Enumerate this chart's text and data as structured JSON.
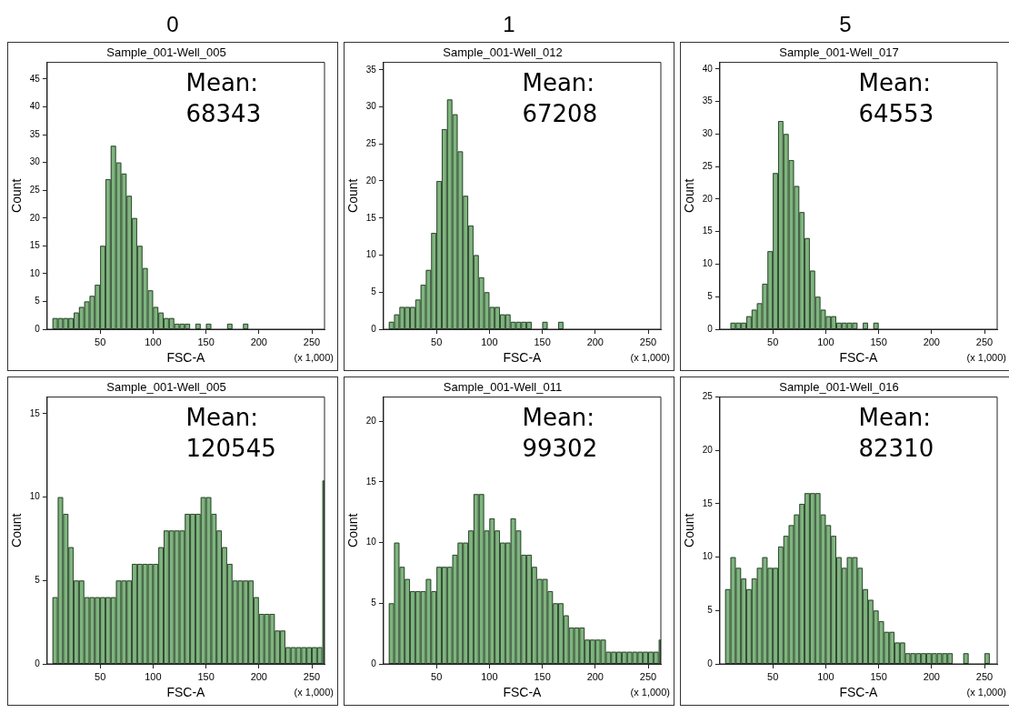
{
  "chart_data": [
    {
      "type": "histogram",
      "title": "0",
      "subtitle": "Sample_001-Well_005",
      "xlabel": "FSC-A",
      "ylabel": "Count",
      "annotations": [
        "Mean:",
        "68343",
        "(x 1,000)"
      ],
      "color": "#7fb47f",
      "grid": false,
      "xlim": [
        0,
        262
      ],
      "xticks": [
        50,
        100,
        150,
        200,
        250
      ],
      "ylim": [
        0,
        48
      ],
      "yticks": [
        0,
        5,
        10,
        15,
        20,
        25,
        30,
        35,
        40,
        45
      ],
      "bins": [
        5,
        10,
        15,
        20,
        25,
        30,
        35,
        40,
        45,
        50,
        55,
        60,
        65,
        70,
        75,
        80,
        85,
        90,
        95,
        100,
        105,
        110,
        115,
        120,
        125,
        130,
        135,
        140,
        145,
        150,
        155,
        160,
        165,
        170,
        175,
        180,
        185,
        190,
        195,
        200,
        205,
        210,
        215,
        220,
        225,
        230,
        235,
        240,
        245,
        250,
        255,
        260
      ],
      "values": [
        2,
        2,
        2,
        2,
        3,
        4,
        5,
        6,
        8,
        15,
        27,
        33,
        30,
        28,
        24,
        20,
        15,
        11,
        7,
        4,
        3,
        2,
        2,
        1,
        1,
        1,
        0,
        1,
        0,
        1,
        0,
        0,
        0,
        1,
        0,
        0,
        1,
        0,
        0,
        0,
        0,
        0,
        0,
        0,
        0,
        0,
        0,
        0,
        0,
        0,
        0
      ]
    },
    {
      "type": "histogram",
      "title": "1",
      "subtitle": "Sample_001-Well_012",
      "xlabel": "FSC-A",
      "ylabel": "Count",
      "annotations": [
        "Mean:",
        "67208",
        "(x 1,000)"
      ],
      "color": "#7fb47f",
      "grid": false,
      "xlim": [
        0,
        262
      ],
      "xticks": [
        50,
        100,
        150,
        200,
        250
      ],
      "ylim": [
        0,
        36
      ],
      "yticks": [
        0,
        5,
        10,
        15,
        20,
        25,
        30,
        35
      ],
      "bins": [
        5,
        10,
        15,
        20,
        25,
        30,
        35,
        40,
        45,
        50,
        55,
        60,
        65,
        70,
        75,
        80,
        85,
        90,
        95,
        100,
        105,
        110,
        115,
        120,
        125,
        130,
        135,
        140,
        145,
        150,
        155,
        160,
        165,
        170,
        175,
        180,
        185,
        190,
        195,
        200,
        205,
        210,
        215,
        220,
        225,
        230,
        235,
        240,
        245,
        250,
        255,
        260
      ],
      "values": [
        1,
        2,
        3,
        3,
        3,
        4,
        6,
        8,
        13,
        20,
        27,
        31,
        29,
        24,
        18,
        14,
        10,
        7,
        5,
        3,
        3,
        2,
        2,
        1,
        1,
        1,
        1,
        0,
        0,
        1,
        0,
        0,
        1,
        0,
        0,
        0,
        0,
        0,
        0,
        0,
        0,
        0,
        0,
        0,
        0,
        0,
        0,
        0,
        0,
        0,
        0
      ]
    },
    {
      "type": "histogram",
      "title": "5",
      "subtitle": "Sample_001-Well_017",
      "xlabel": "FSC-A",
      "ylabel": "Count",
      "annotations": [
        "Mean:",
        "64553",
        "(x 1,000)"
      ],
      "color": "#7fb47f",
      "grid": false,
      "xlim": [
        0,
        262
      ],
      "xticks": [
        50,
        100,
        150,
        200,
        250
      ],
      "ylim": [
        0,
        41
      ],
      "yticks": [
        0,
        5,
        10,
        15,
        20,
        25,
        30,
        35,
        40
      ],
      "bins": [
        5,
        10,
        15,
        20,
        25,
        30,
        35,
        40,
        45,
        50,
        55,
        60,
        65,
        70,
        75,
        80,
        85,
        90,
        95,
        100,
        105,
        110,
        115,
        120,
        125,
        130,
        135,
        140,
        145,
        150,
        155,
        160,
        165,
        170,
        175,
        180,
        185,
        190,
        195,
        200,
        205,
        210,
        215,
        220,
        225,
        230,
        235,
        240,
        245,
        250,
        255,
        260
      ],
      "values": [
        0,
        1,
        1,
        1,
        2,
        3,
        4,
        7,
        12,
        24,
        32,
        30,
        26,
        22,
        18,
        14,
        9,
        5,
        3,
        2,
        2,
        1,
        1,
        1,
        1,
        0,
        1,
        0,
        1,
        0,
        0,
        0,
        0,
        0,
        0,
        0,
        0,
        0,
        0,
        0,
        0,
        0,
        0,
        0,
        0,
        0,
        0,
        0,
        0,
        0,
        0
      ]
    },
    {
      "type": "histogram",
      "subtitle": "Sample_001-Well_005",
      "xlabel": "FSC-A",
      "ylabel": "Count",
      "annotations": [
        "Mean:",
        "120545",
        "(x 1,000)"
      ],
      "color": "#7fb47f",
      "grid": false,
      "xlim": [
        0,
        262
      ],
      "xticks": [
        50,
        100,
        150,
        200,
        250
      ],
      "ylim": [
        0,
        16
      ],
      "yticks": [
        0,
        5,
        10,
        15
      ],
      "bins": [
        5,
        10,
        15,
        20,
        25,
        30,
        35,
        40,
        45,
        50,
        55,
        60,
        65,
        70,
        75,
        80,
        85,
        90,
        95,
        100,
        105,
        110,
        115,
        120,
        125,
        130,
        135,
        140,
        145,
        150,
        155,
        160,
        165,
        170,
        175,
        180,
        185,
        190,
        195,
        200,
        205,
        210,
        215,
        220,
        225,
        230,
        235,
        240,
        245,
        250,
        255,
        260,
        262
      ],
      "values": [
        4,
        10,
        9,
        7,
        5,
        5,
        4,
        4,
        4,
        4,
        4,
        4,
        5,
        5,
        5,
        6,
        6,
        6,
        6,
        6,
        7,
        8,
        8,
        8,
        8,
        9,
        9,
        9,
        10,
        10,
        9,
        8,
        7,
        6,
        5,
        5,
        5,
        5,
        4,
        3,
        3,
        3,
        2,
        2,
        1,
        1,
        1,
        1,
        1,
        1,
        1,
        11
      ]
    },
    {
      "type": "histogram",
      "subtitle": "Sample_001-Well_011",
      "xlabel": "FSC-A",
      "ylabel": "Count",
      "annotations": [
        "Mean:",
        "99302",
        "(x 1,000)"
      ],
      "color": "#7fb47f",
      "grid": false,
      "xlim": [
        0,
        262
      ],
      "xticks": [
        50,
        100,
        150,
        200,
        250
      ],
      "ylim": [
        0,
        22
      ],
      "yticks": [
        0,
        5,
        10,
        15,
        20
      ],
      "bins": [
        5,
        10,
        15,
        20,
        25,
        30,
        35,
        40,
        45,
        50,
        55,
        60,
        65,
        70,
        75,
        80,
        85,
        90,
        95,
        100,
        105,
        110,
        115,
        120,
        125,
        130,
        135,
        140,
        145,
        150,
        155,
        160,
        165,
        170,
        175,
        180,
        185,
        190,
        195,
        200,
        205,
        210,
        215,
        220,
        225,
        230,
        235,
        240,
        245,
        250,
        255,
        260,
        262
      ],
      "values": [
        5,
        10,
        8,
        7,
        6,
        6,
        6,
        7,
        6,
        8,
        8,
        8,
        9,
        10,
        10,
        11,
        14,
        14,
        11,
        12,
        11,
        10,
        10,
        12,
        11,
        9,
        9,
        8,
        7,
        7,
        6,
        5,
        5,
        4,
        3,
        3,
        3,
        2,
        2,
        2,
        2,
        1,
        1,
        1,
        1,
        1,
        1,
        1,
        1,
        1,
        1,
        2
      ]
    },
    {
      "type": "histogram",
      "subtitle": "Sample_001-Well_016",
      "xlabel": "FSC-A",
      "ylabel": "Count",
      "annotations": [
        "Mean:",
        "82310",
        "(x 1,000)"
      ],
      "color": "#7fb47f",
      "grid": false,
      "xlim": [
        0,
        262
      ],
      "xticks": [
        50,
        100,
        150,
        200,
        250
      ],
      "ylim": [
        0,
        25
      ],
      "yticks": [
        0,
        5,
        10,
        15,
        20,
        25
      ],
      "bins": [
        5,
        10,
        15,
        20,
        25,
        30,
        35,
        40,
        45,
        50,
        55,
        60,
        65,
        70,
        75,
        80,
        85,
        90,
        95,
        100,
        105,
        110,
        115,
        120,
        125,
        130,
        135,
        140,
        145,
        150,
        155,
        160,
        165,
        170,
        175,
        180,
        185,
        190,
        195,
        200,
        205,
        210,
        215,
        220,
        225,
        230,
        235,
        240,
        245,
        250,
        255,
        260
      ],
      "values": [
        7,
        10,
        9,
        8,
        7,
        8,
        9,
        10,
        9,
        9,
        11,
        12,
        13,
        14,
        15,
        16,
        16,
        16,
        14,
        13,
        12,
        10,
        9,
        10,
        10,
        9,
        7,
        6,
        5,
        4,
        3,
        3,
        2,
        2,
        1,
        1,
        1,
        1,
        1,
        1,
        1,
        1,
        1,
        0,
        0,
        1,
        0,
        0,
        0,
        1,
        0
      ]
    }
  ]
}
